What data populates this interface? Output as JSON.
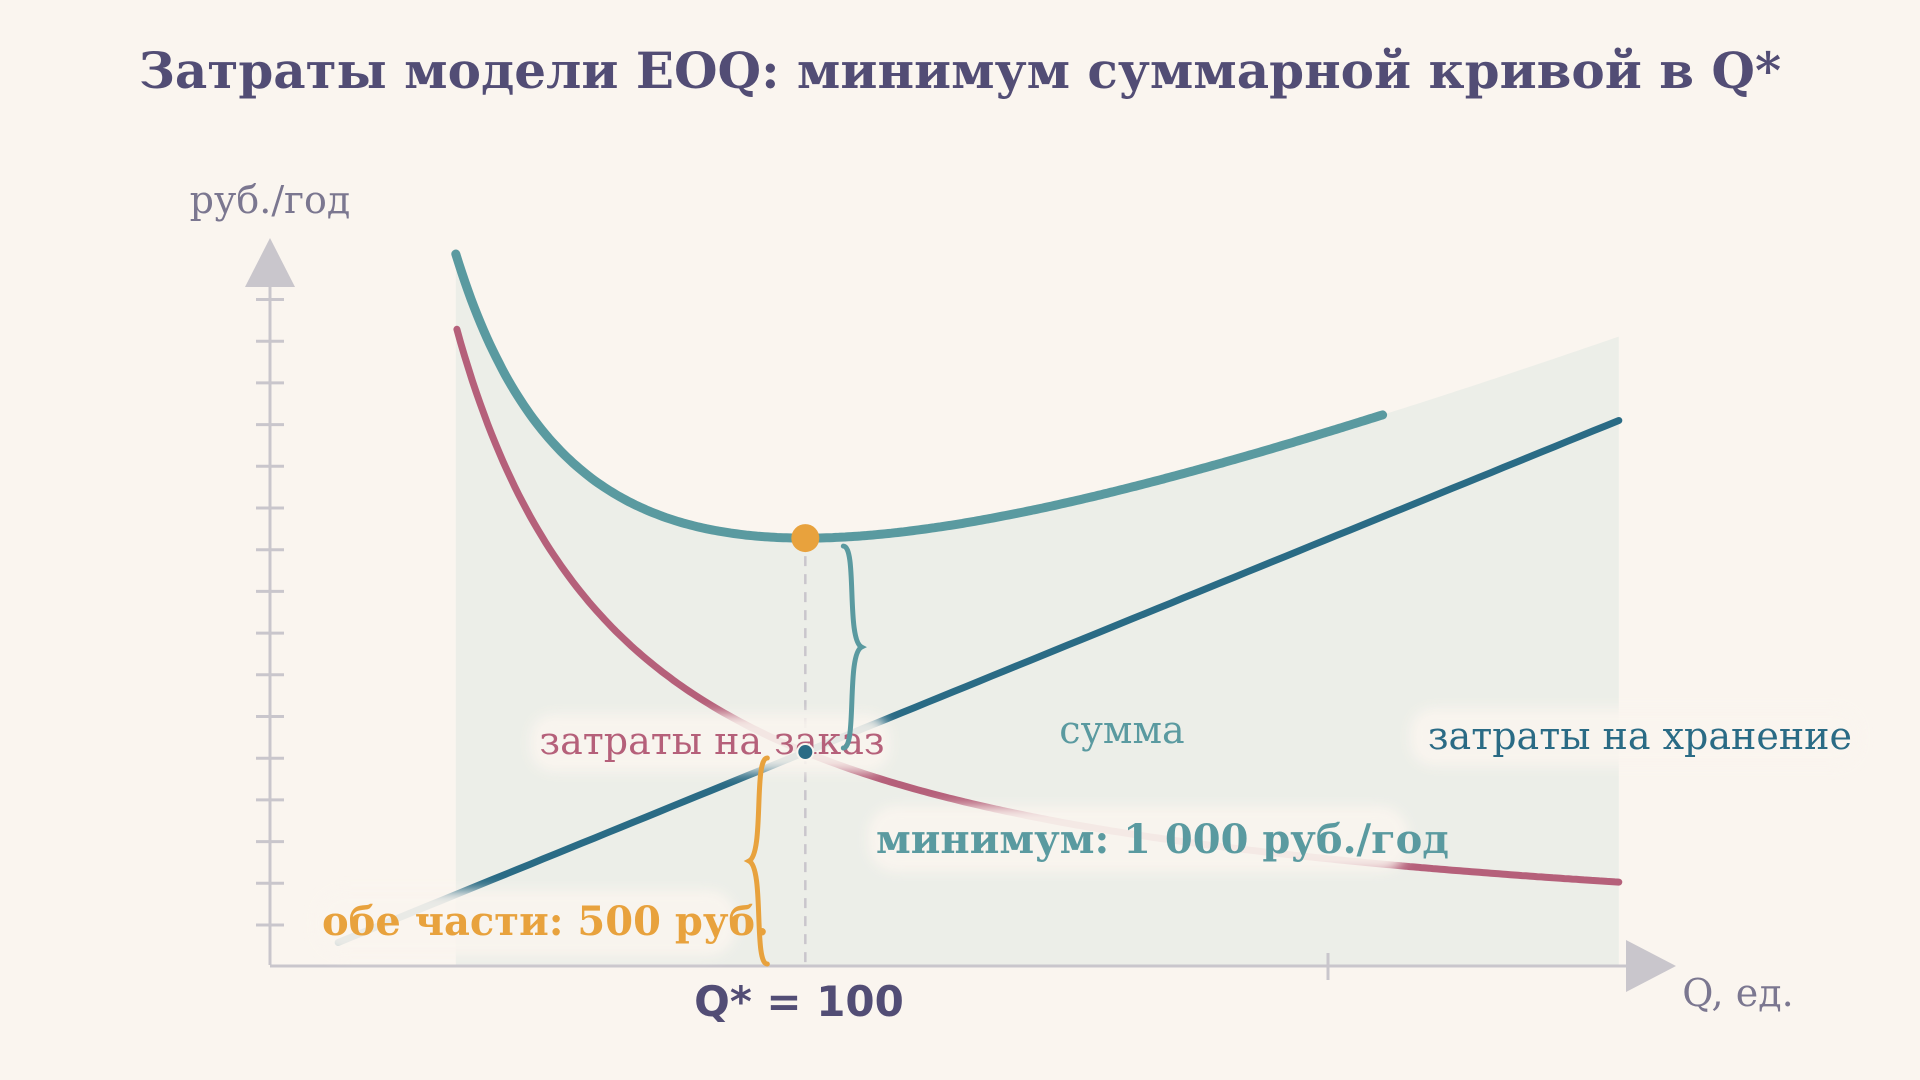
{
  "chart_data": {
    "type": "line",
    "title": "Затраты модели EOQ: минимум суммарной кривой в Q*",
    "ylabel": "руб./год",
    "xlabel": "Q, ед.",
    "xlim": [
      10,
      260
    ],
    "ylim": [
      0,
      1650
    ],
    "grid": false,
    "x_tick_labels_shown": false,
    "series": [
      {
        "name": "затраты на заказ",
        "formula": "50000/Q",
        "color": "#b5607a"
      },
      {
        "name": "затраты на хранение",
        "formula": "5*Q",
        "color": "#2a6b85"
      },
      {
        "name": "сумма",
        "formula": "50000/Q + 5*Q",
        "color": "#5a9aa0"
      }
    ],
    "optimum": {
      "q": 100,
      "total_cost": 1000,
      "each_part": 500
    },
    "annotations": {
      "qstar": "Q* = 100",
      "minimum": "минимум: 1 000 руб./год",
      "parts": "обе части: 500 руб."
    },
    "colors": {
      "background": "#faf5ef",
      "area_fill": "#eceee8",
      "axis": "#c9c6cc",
      "accent_orange": "#e8a23d",
      "title": "#524d75"
    }
  }
}
